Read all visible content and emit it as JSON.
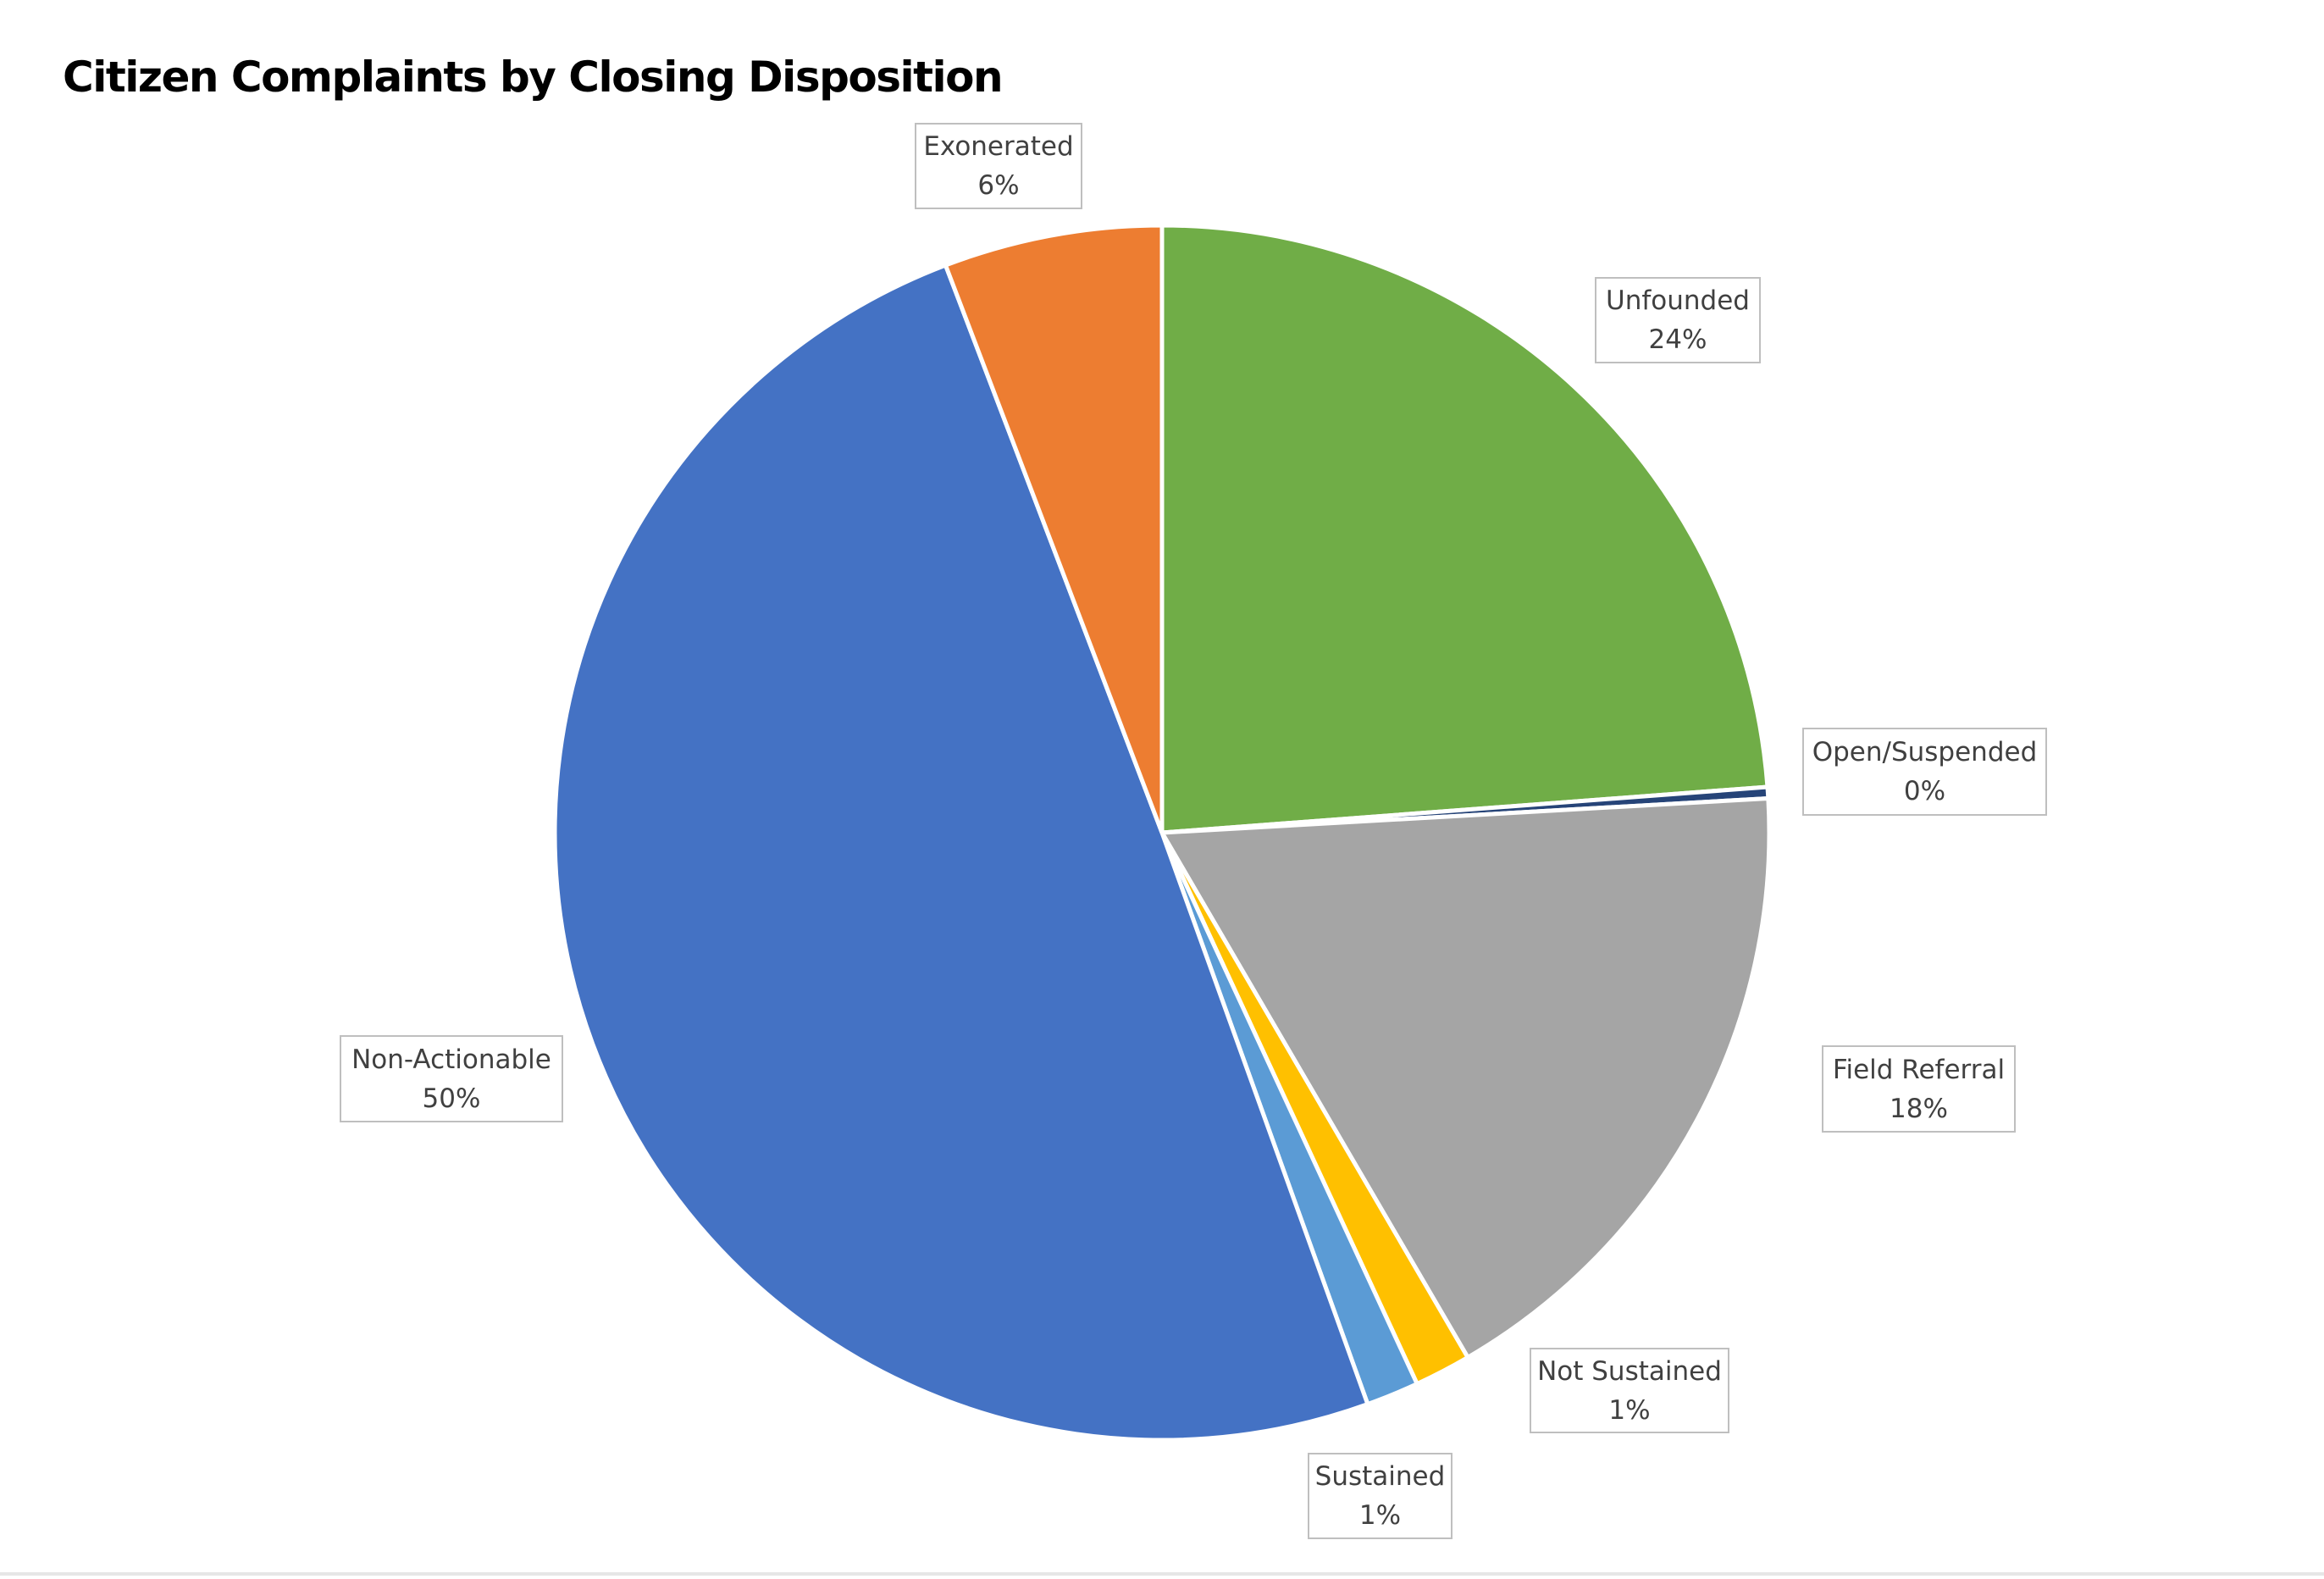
{
  "chart_data": {
    "type": "pie",
    "title": "Citizen Complaints by Closing Disposition",
    "start_angle_deg": 0,
    "direction": "clockwise",
    "slices": [
      {
        "name": "Unfounded",
        "value": 23.8,
        "label": "24%",
        "color": "#70AD47"
      },
      {
        "name": "Open/Suspended",
        "value": 0.3,
        "label": "0%",
        "color": "#264478"
      },
      {
        "name": "Field Referral",
        "value": 17.5,
        "label": "18%",
        "color": "#A5A5A5"
      },
      {
        "name": "Not Sustained",
        "value": 1.5,
        "label": "1%",
        "color": "#FFC000"
      },
      {
        "name": "Sustained",
        "value": 1.4,
        "label": "1%",
        "color": "#5B9BD5"
      },
      {
        "name": "Non-Actionable",
        "value": 49.7,
        "label": "50%",
        "color": "#4472C4"
      },
      {
        "name": "Exonerated",
        "value": 5.8,
        "label": "6%",
        "color": "#ED7D31"
      }
    ],
    "legend": "none",
    "data_labels": "category and percentage in boxes outside"
  }
}
